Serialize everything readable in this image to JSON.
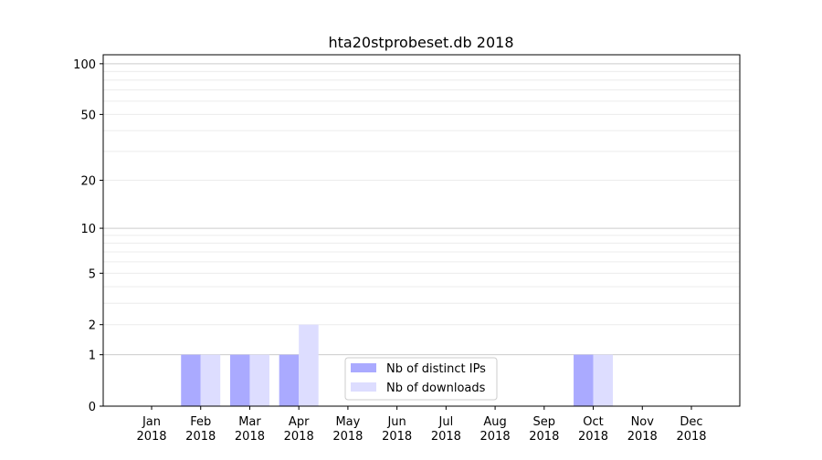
{
  "chart_data": {
    "type": "bar",
    "title": "hta20stprobeset.db 2018",
    "xlabel": "",
    "ylabel": "",
    "yscale": "log(1+y)",
    "ylim": [
      0,
      113
    ],
    "grid": true,
    "legend_position": "lower-center",
    "categories": [
      "Jan\n2018",
      "Feb\n2018",
      "Mar\n2018",
      "Apr\n2018",
      "May\n2018",
      "Jun\n2018",
      "Jul\n2018",
      "Aug\n2018",
      "Sep\n2018",
      "Oct\n2018",
      "Nov\n2018",
      "Dec\n2018"
    ],
    "yticks": [
      0,
      1,
      2,
      5,
      10,
      20,
      50,
      100
    ],
    "ytick_labels": [
      "0",
      "1",
      "2",
      "5",
      "10",
      "20",
      "50",
      "100"
    ],
    "series": [
      {
        "name": "Nb of distinct IPs",
        "color": "#aaaaff",
        "values": [
          0,
          1,
          1,
          1,
          0,
          0,
          0,
          0,
          0,
          1,
          0,
          0
        ]
      },
      {
        "name": "Nb of downloads",
        "color": "#ddddff",
        "values": [
          0,
          1,
          1,
          2,
          0,
          0,
          0,
          0,
          0,
          1,
          0,
          0
        ]
      }
    ]
  }
}
